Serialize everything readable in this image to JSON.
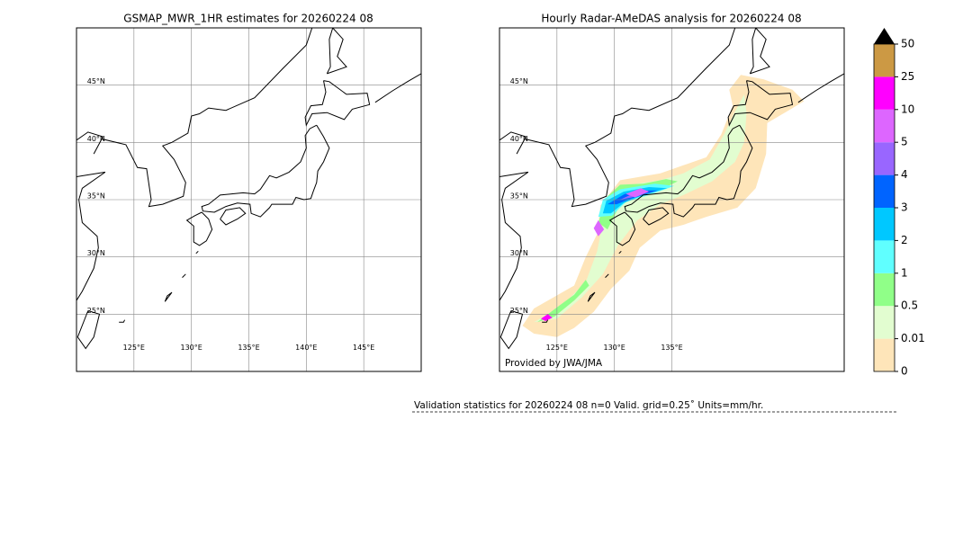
{
  "panels": [
    {
      "title": "GSMAP_MWR_1HR estimates for 20260224 08",
      "type": "map",
      "xlim": [
        120,
        150
      ],
      "ylim": [
        20,
        50
      ],
      "xticks": [
        {
          "value": 125,
          "label": "125°E"
        },
        {
          "value": 130,
          "label": "130°E"
        },
        {
          "value": 135,
          "label": "135°E"
        },
        {
          "value": 140,
          "label": "140°E"
        },
        {
          "value": 145,
          "label": "145°E"
        }
      ],
      "yticks": [
        {
          "value": 25,
          "label": "25°N"
        },
        {
          "value": 30,
          "label": "30°N"
        },
        {
          "value": 35,
          "label": "35°N"
        },
        {
          "value": 40,
          "label": "40°N"
        },
        {
          "value": 45,
          "label": "45°N"
        }
      ],
      "radar": false
    },
    {
      "title": "Hourly Radar-AMeDAS analysis for 20260224 08",
      "type": "map",
      "xlim": [
        120,
        150
      ],
      "ylim": [
        20,
        50
      ],
      "xticks": [
        {
          "value": 125,
          "label": "125°E"
        },
        {
          "value": 130,
          "label": "130°E"
        },
        {
          "value": 135,
          "label": "135°E"
        }
      ],
      "yticks": [
        {
          "value": 25,
          "label": "25°N"
        },
        {
          "value": 30,
          "label": "30°N"
        },
        {
          "value": 35,
          "label": "35°N"
        },
        {
          "value": 40,
          "label": "40°N"
        },
        {
          "value": 45,
          "label": "45°N"
        }
      ],
      "radar": true,
      "credit": "Provided by JWA/JMA"
    }
  ],
  "colorbar": {
    "ticks": [
      0,
      0.01,
      0.5,
      1,
      2,
      3,
      4,
      5,
      10,
      25,
      50
    ],
    "colors": [
      "#fee5b9",
      "#e2fdd0",
      "#90ff88",
      "#60ffff",
      "#00c8ff",
      "#0064ff",
      "#9966ff",
      "#dd66ff",
      "#ff00ff",
      "#cc9944"
    ],
    "extend_color": "#000000"
  },
  "validation": "Validation statistics for 20260224 08  n=0 Valid. grid=0.25˚ Units=mm/hr."
}
